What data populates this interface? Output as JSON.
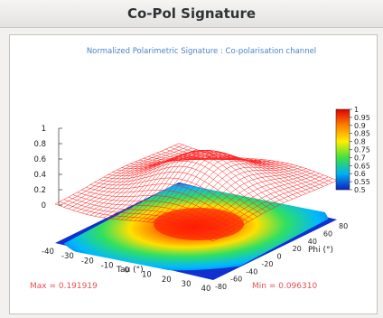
{
  "window": {
    "title": "Co-Pol Signature"
  },
  "plot": {
    "heading": "Normalized Polarimetric Signature : Co-polarisation channel",
    "z_ticks": [
      "1",
      "0.8",
      "0.6",
      "0.4",
      "0.2",
      "0"
    ],
    "tau_ticks": [
      "-40",
      "-30",
      "-20",
      "-10",
      "0",
      "10",
      "20",
      "30",
      "40"
    ],
    "tau_label": "Tau (°)",
    "phi_ticks": [
      "-80",
      "-60",
      "-40",
      "-20",
      "0",
      "20",
      "40",
      "60",
      "80"
    ],
    "phi_label": "Phi (°)",
    "colorbar_ticks": [
      "1",
      "0.95",
      "0.9",
      "0.85",
      "0.8",
      "0.75",
      "0.7",
      "0.65",
      "0.6",
      "0.55",
      "0.5"
    ],
    "max_text": "Max = 0.191919",
    "min_text": "Min = 0.096310",
    "colors": {
      "mesh": "#ff2020",
      "heading": "#4a86c8",
      "stats": "#e8504f"
    }
  }
}
